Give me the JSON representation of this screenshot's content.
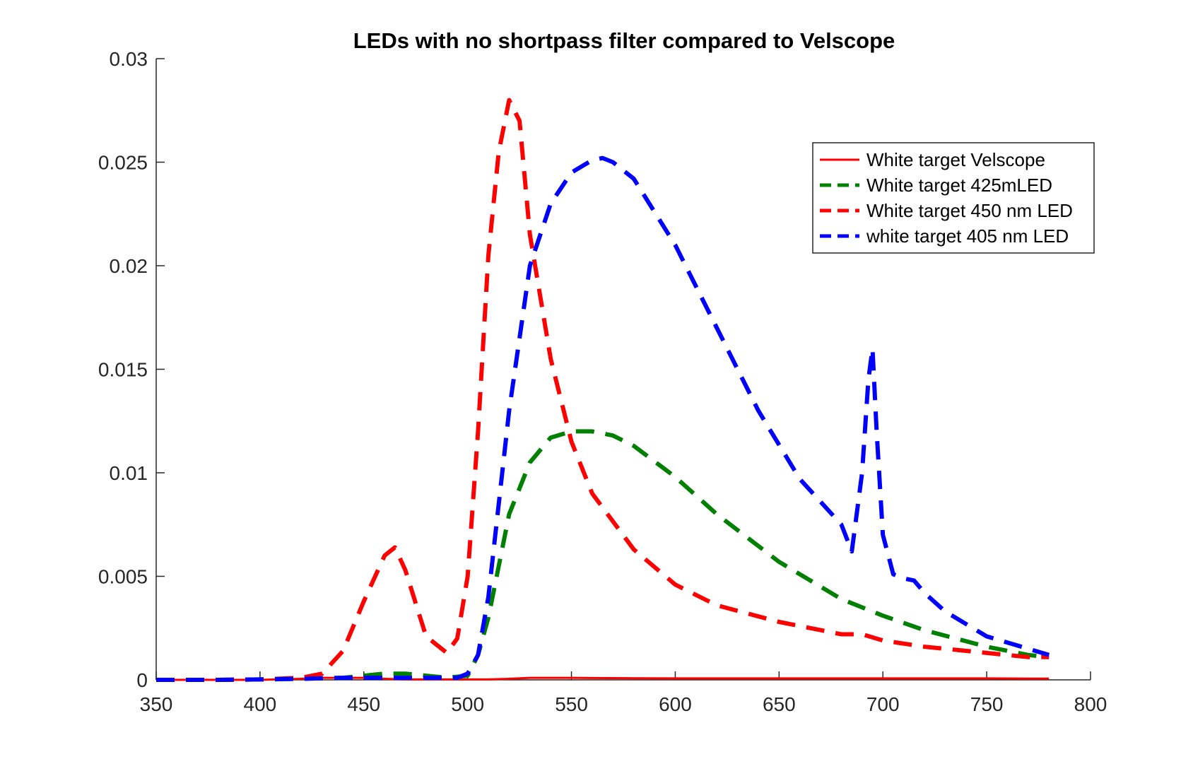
{
  "chart_data": {
    "type": "line",
    "title": "LEDs with no shortpass filter compared to Velscope",
    "xlabel": "",
    "ylabel": "",
    "xlim": [
      350,
      800
    ],
    "ylim": [
      0,
      0.03
    ],
    "xticks": [
      350,
      400,
      450,
      500,
      550,
      600,
      650,
      700,
      750,
      800
    ],
    "xtick_labels": [
      "350",
      "400",
      "450",
      "500",
      "550",
      "600",
      "650",
      "700",
      "750",
      "800"
    ],
    "yticks": [
      0,
      0.005,
      0.01,
      0.015,
      0.02,
      0.025,
      0.03
    ],
    "ytick_labels": [
      "0",
      "0.005",
      "0.01",
      "0.015",
      "0.02",
      "0.025",
      "0.03"
    ],
    "grid": false,
    "legend_position": "top-right",
    "series": [
      {
        "name": "White target Velscope",
        "color": "#ff0000",
        "style": "solid",
        "x": [
          350,
          380,
          400,
          420,
          430,
          440,
          450,
          460,
          470,
          480,
          490,
          500,
          510,
          520,
          530,
          540,
          550,
          560,
          580,
          600,
          620,
          650,
          680,
          700,
          720,
          750,
          770,
          780
        ],
        "y": [
          0,
          0,
          0,
          5e-05,
          0.0001,
          0.0001,
          0.0001,
          5e-05,
          2e-05,
          2e-05,
          2e-05,
          2e-05,
          2e-05,
          5e-05,
          0.0001,
          0.0001,
          0.0001,
          9e-05,
          8e-05,
          7e-05,
          7e-05,
          7e-05,
          7e-05,
          7e-05,
          7e-05,
          7e-05,
          6e-05,
          6e-05
        ]
      },
      {
        "name": "White target 425mLED",
        "color": "#008000",
        "style": "dashed",
        "x": [
          350,
          380,
          400,
          420,
          440,
          450,
          460,
          470,
          480,
          490,
          500,
          505,
          510,
          515,
          520,
          530,
          540,
          550,
          560,
          570,
          580,
          600,
          620,
          650,
          680,
          700,
          720,
          750,
          770,
          780
        ],
        "y": [
          0,
          0,
          2e-05,
          5e-05,
          0.0001,
          0.0002,
          0.0003,
          0.0003,
          0.0002,
          0.0001,
          0.0002,
          0.0012,
          0.003,
          0.0055,
          0.008,
          0.0105,
          0.0117,
          0.012,
          0.012,
          0.0118,
          0.0113,
          0.0098,
          0.008,
          0.0057,
          0.0039,
          0.0031,
          0.0024,
          0.0016,
          0.0012,
          0.0011
        ]
      },
      {
        "name": "White target 450 nm LED",
        "color": "#ff0000",
        "style": "dashed",
        "x": [
          350,
          380,
          400,
          420,
          430,
          440,
          450,
          460,
          465,
          470,
          480,
          490,
          495,
          500,
          505,
          510,
          515,
          520,
          525,
          530,
          540,
          550,
          560,
          580,
          600,
          620,
          650,
          680,
          690,
          700,
          720,
          750,
          770,
          780
        ],
        "y": [
          0,
          0,
          2e-05,
          0.0001,
          0.0003,
          0.0014,
          0.0038,
          0.006,
          0.0064,
          0.0053,
          0.0021,
          0.0013,
          0.002,
          0.005,
          0.012,
          0.0205,
          0.0255,
          0.028,
          0.027,
          0.0215,
          0.0155,
          0.0115,
          0.009,
          0.0063,
          0.0046,
          0.0036,
          0.0028,
          0.0022,
          0.0022,
          0.0019,
          0.0016,
          0.0013,
          0.0011,
          0.0011
        ]
      },
      {
        "name": "white target 405 nm LED",
        "color": "#0000ff",
        "style": "dashed",
        "x": [
          350,
          380,
          400,
          420,
          440,
          460,
          480,
          495,
          500,
          505,
          510,
          520,
          530,
          540,
          550,
          560,
          565,
          570,
          580,
          600,
          620,
          640,
          660,
          680,
          685,
          690,
          693,
          695,
          697,
          700,
          705,
          710,
          715,
          720,
          730,
          750,
          770,
          780
        ],
        "y": [
          0,
          0,
          2e-05,
          5e-05,
          0.0001,
          0.0001,
          0.0001,
          0.0001,
          0.0003,
          0.0012,
          0.004,
          0.013,
          0.02,
          0.023,
          0.0245,
          0.0251,
          0.0252,
          0.025,
          0.0242,
          0.021,
          0.017,
          0.013,
          0.0097,
          0.0075,
          0.0062,
          0.01,
          0.0145,
          0.016,
          0.012,
          0.007,
          0.0051,
          0.0049,
          0.0048,
          0.0042,
          0.0033,
          0.0021,
          0.0015,
          0.0012
        ]
      }
    ]
  }
}
